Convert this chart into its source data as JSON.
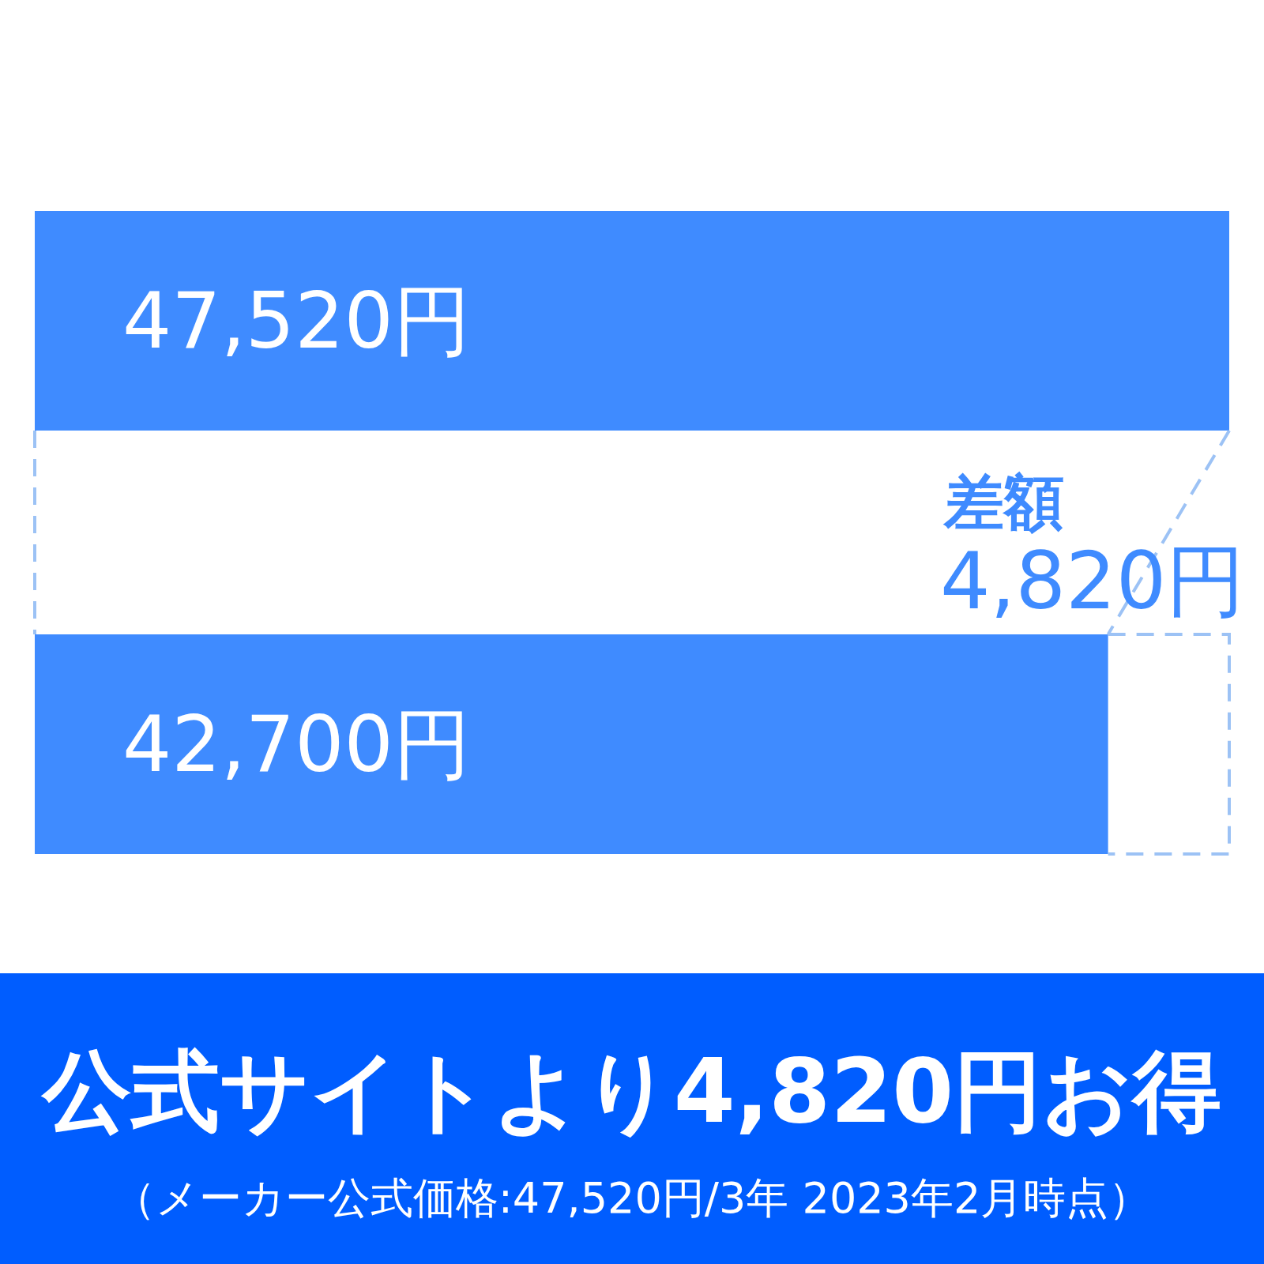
{
  "chart_data": {
    "type": "bar",
    "orientation": "horizontal",
    "title": "公式サイトより4,820円お得",
    "categories": [
      null,
      null
    ],
    "values": [
      47520,
      42700
    ],
    "value_labels": [
      "47,520円",
      "42,700円"
    ],
    "color": "#3f8bff",
    "annotations": [
      "差額",
      "4,820円",
      "（メーカー公式価格:47,520円/3年 2023年2月時点）"
    ]
  }
}
